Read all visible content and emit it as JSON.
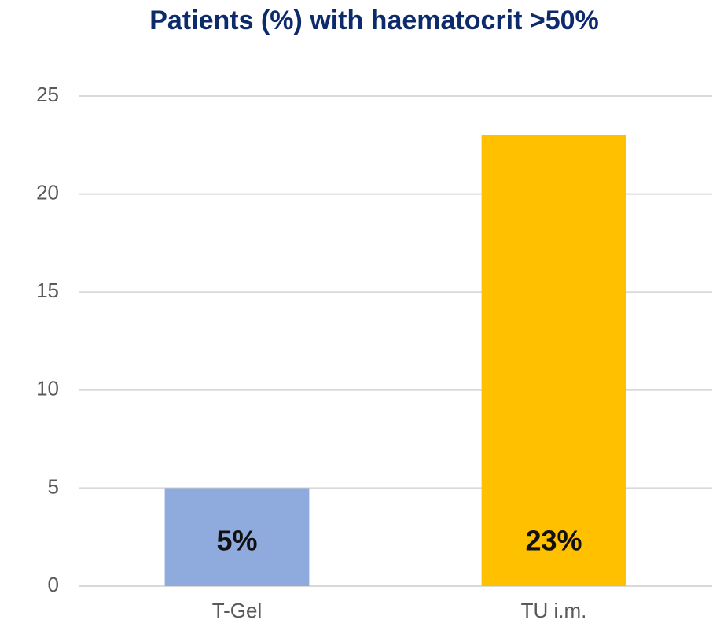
{
  "chart_data": {
    "type": "bar",
    "title": "Patients (%) with haematocrit >50%",
    "categories": [
      "T-Gel",
      "TU i.m."
    ],
    "values": [
      5,
      23
    ],
    "value_labels": [
      "5%",
      "23%"
    ],
    "colors": [
      "#8faadc",
      "#ffc000"
    ],
    "ylim": [
      0,
      25
    ],
    "yticks": [
      0,
      5,
      10,
      15,
      20,
      25
    ],
    "grid": true
  }
}
